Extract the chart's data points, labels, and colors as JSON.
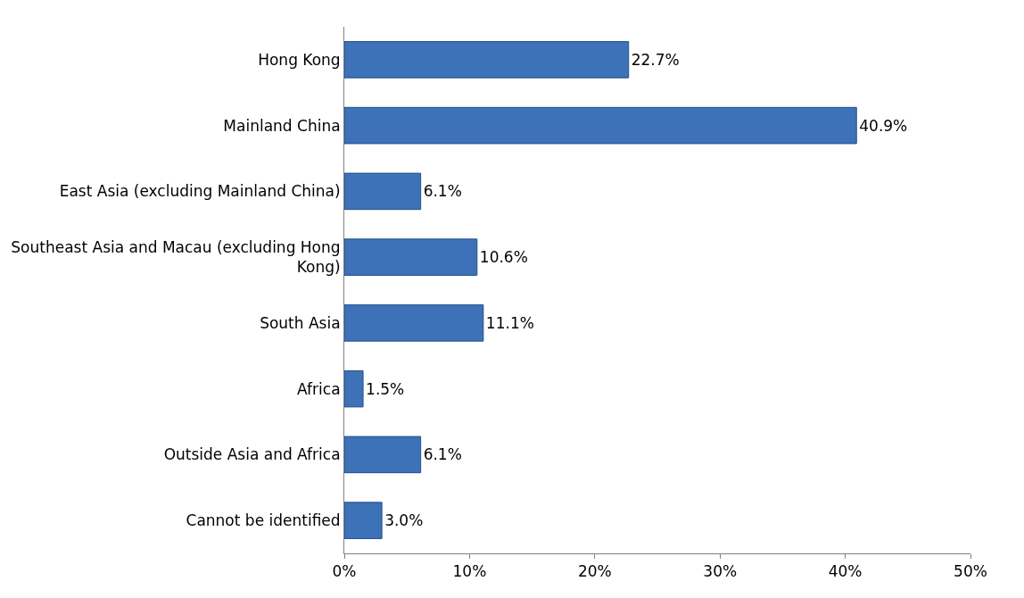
{
  "chart_data": {
    "type": "bar",
    "orientation": "horizontal",
    "categories": [
      "Hong Kong",
      "Mainland China",
      "East Asia (excluding Mainland China)",
      "Southeast Asia and Macau (excluding Hong Kong)",
      "South Asia",
      "Africa",
      "Outside Asia and Africa",
      "Cannot be identified"
    ],
    "values": [
      22.7,
      40.9,
      6.1,
      10.6,
      11.1,
      1.5,
      6.1,
      3.0
    ],
    "value_labels": [
      "22.7%",
      "40.9%",
      "6.1%",
      "10.6%",
      "11.1%",
      "1.5%",
      "6.1%",
      "3.0%"
    ],
    "color": "#3d72b8",
    "xlim": [
      0,
      50
    ],
    "xticks": [
      {
        "value": 0,
        "label": "0%"
      },
      {
        "value": 10,
        "label": "10%"
      },
      {
        "value": 20,
        "label": "20%"
      },
      {
        "value": 30,
        "label": "30%"
      },
      {
        "value": 40,
        "label": "40%"
      },
      {
        "value": 50,
        "label": "50%"
      }
    ]
  }
}
